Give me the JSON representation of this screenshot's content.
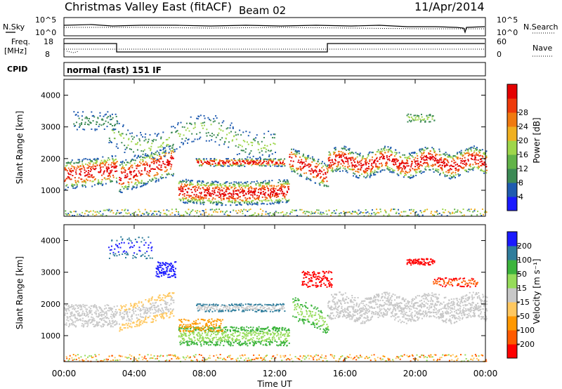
{
  "header": {
    "station": "Christmas Valley East (fitACF)",
    "beam": "Beam 02",
    "date": "11/Apr/2014"
  },
  "noise_panel": {
    "left_label": "N.Sky",
    "right_label": "N.Search",
    "left_ticks": [
      "10^5",
      "10^0"
    ],
    "right_ticks": [
      "10^5",
      "10^0"
    ]
  },
  "freq_panel": {
    "left_label_1": "Freq.",
    "left_label_2": "[MHz]",
    "right_label": "Nave",
    "left_ticks": [
      "18",
      "8"
    ],
    "right_ticks": [
      "60",
      "0"
    ]
  },
  "cpid": {
    "label": "CPID",
    "value": "normal (fast) 151 IF"
  },
  "colors": {
    "power_scale": [
      "#1a1aff",
      "#1f5bb0",
      "#3c8a55",
      "#62b348",
      "#9ed64a",
      "#f0b020",
      "#f07a10",
      "#ee3a0a",
      "#e40000"
    ],
    "velocity_scale": [
      "#ff0000",
      "#ff5a00",
      "#ff9800",
      "#ffc860",
      "#c8c8c8",
      "#96dc5a",
      "#3cb43c",
      "#2f7d9c",
      "#1a1aff"
    ],
    "axis": "#000000"
  },
  "chart_data": [
    {
      "type": "heatmap",
      "title": "Power",
      "ylabel": "Slant Range [km]",
      "ylim": [
        180,
        4500
      ],
      "yticks": [
        "1000",
        "2000",
        "3000",
        "4000"
      ],
      "xlabel": "Time UT",
      "xlim": [
        "00:00",
        "24:00"
      ],
      "xticks": [
        "00:00",
        "04:00",
        "08:00",
        "12:00",
        "16:00",
        "20:00",
        "00:00"
      ],
      "colorbar": {
        "label": "Power [dB]",
        "range": [
          0,
          32
        ],
        "ticks": [
          "4",
          "8",
          "12",
          "16",
          "20",
          "24",
          "28"
        ]
      }
    },
    {
      "type": "heatmap",
      "title": "Velocity",
      "ylabel": "Slant Range [km]",
      "ylim": [
        180,
        4500
      ],
      "yticks": [
        "1000",
        "2000",
        "3000",
        "4000"
      ],
      "xlabel": "Time UT",
      "xlim": [
        "00:00",
        "24:00"
      ],
      "xticks": [
        "00:00",
        "04:00",
        "08:00",
        "12:00",
        "16:00",
        "20:00",
        "00:00"
      ],
      "colorbar": {
        "label": "Velocity [m s⁻¹]",
        "range": [
          -250,
          250
        ],
        "ticks": [
          "200",
          "100",
          "50",
          "15",
          "-15",
          "-50",
          "-100",
          "-200"
        ]
      }
    }
  ],
  "time_axis_label": "Time UT"
}
